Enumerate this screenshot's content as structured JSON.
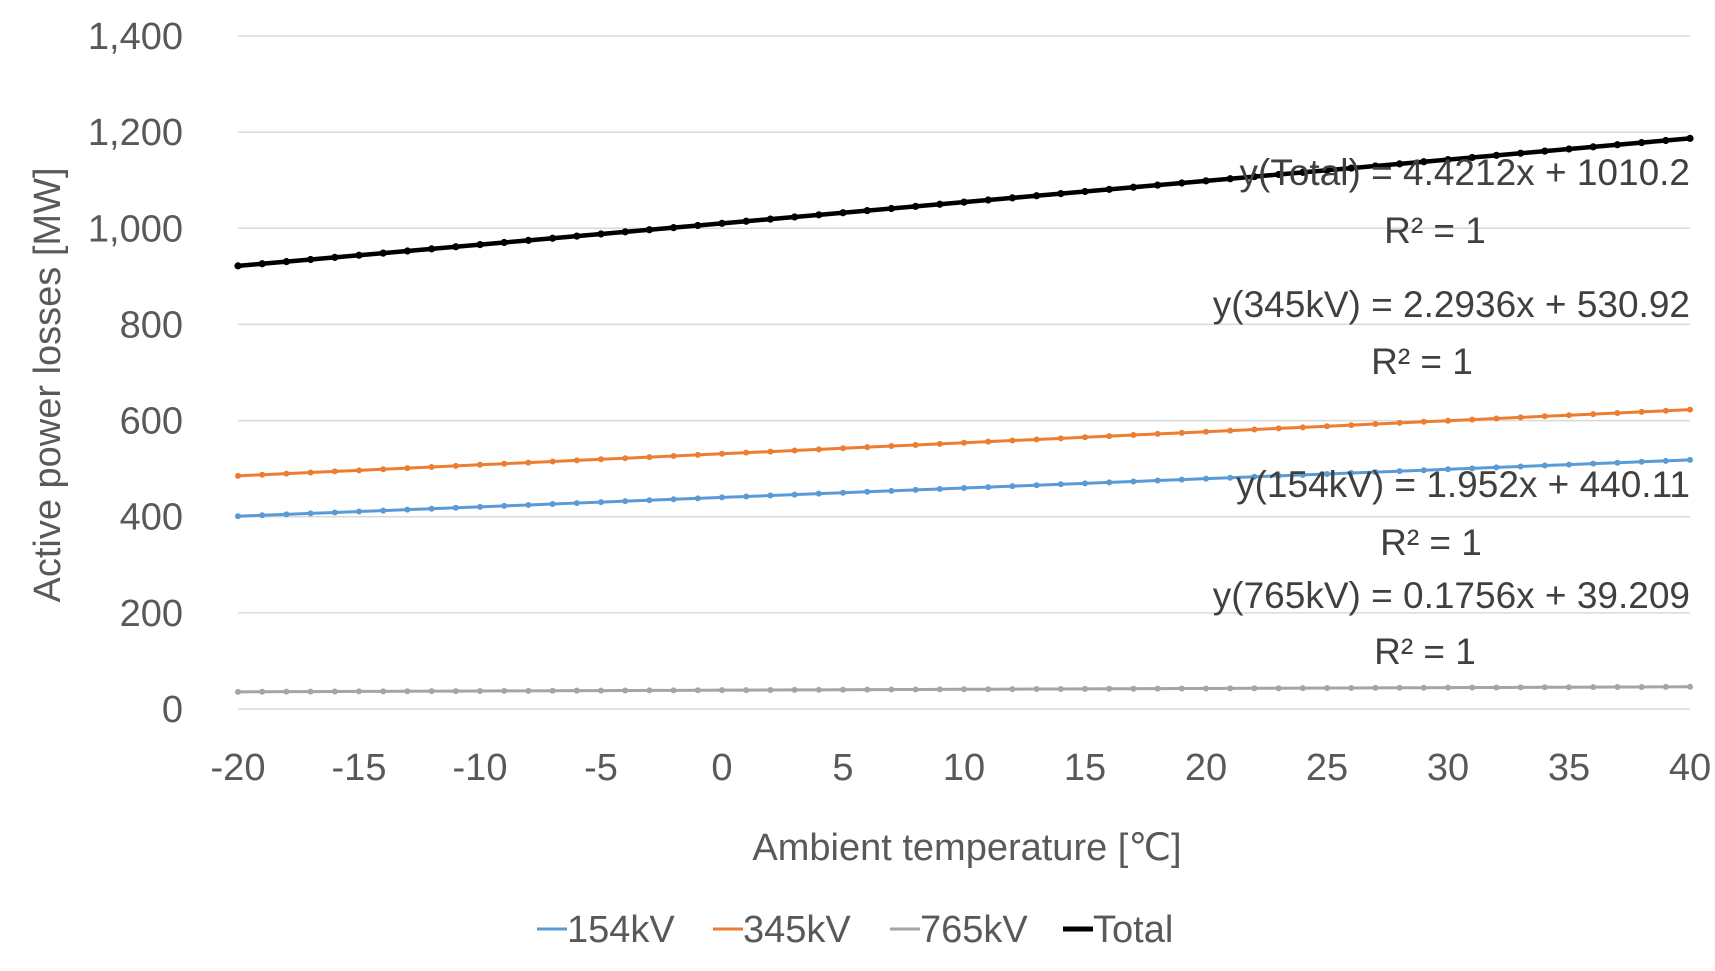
{
  "chart_data": {
    "type": "line",
    "title": "",
    "xlabel": "Ambient temperature [℃]",
    "ylabel": "Active power losses [MW]",
    "xlim": [
      -20,
      40
    ],
    "ylim": [
      0,
      1400
    ],
    "xticks": [
      -20,
      -15,
      -10,
      -5,
      0,
      5,
      10,
      15,
      20,
      25,
      30,
      35,
      40
    ],
    "yticks": [
      0,
      200,
      400,
      600,
      800,
      1000,
      1200,
      1400
    ],
    "x_tick_labels": [
      "-20",
      "-15",
      "-10",
      "-5",
      "0",
      "5",
      "10",
      "15",
      "20",
      "25",
      "30",
      "35",
      "40"
    ],
    "y_tick_labels": [
      "0",
      "200",
      "400",
      "600",
      "800",
      "1,000",
      "1,200",
      "1,400"
    ],
    "grid": "horizontal",
    "legend_position": "bottom",
    "x_step": 1,
    "series": [
      {
        "name": "154kV",
        "color": "#5b9bd5",
        "slope": 1.952,
        "intercept": 440.11
      },
      {
        "name": "345kV",
        "color": "#ed7d31",
        "slope": 2.2936,
        "intercept": 530.92
      },
      {
        "name": "765kV",
        "color": "#a5a5a5",
        "slope": 0.1756,
        "intercept": 39.209
      },
      {
        "name": "Total",
        "color": "#000000",
        "slope": 4.4212,
        "intercept": 1010.2
      }
    ],
    "annotations": [
      {
        "equation": "y(Total) = 4.4212x + 1010.2",
        "r2": "R² = 1"
      },
      {
        "equation": "y(345kV) = 2.2936x + 530.92",
        "r2": "R² = 1"
      },
      {
        "equation": "y(154kV) = 1.952x + 440.11",
        "r2": "R² = 1"
      },
      {
        "equation": "y(765kV) = 0.1756x + 39.209",
        "r2": "R² = 1"
      }
    ]
  }
}
